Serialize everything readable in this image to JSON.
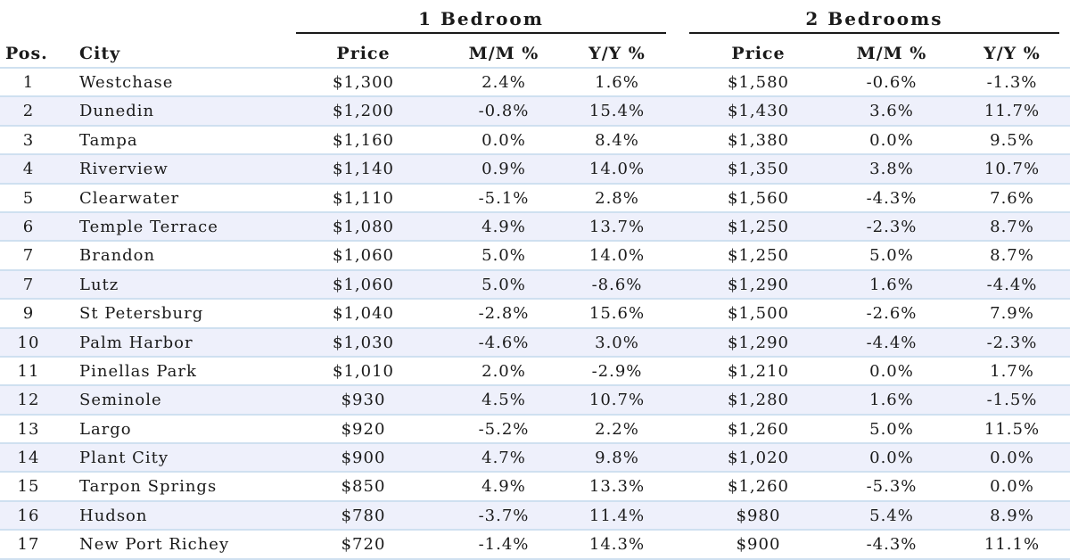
{
  "groups": {
    "one_bedroom": "1 Bedroom",
    "two_bedrooms": "2 Bedrooms"
  },
  "headers": {
    "pos": "Pos.",
    "city": "City",
    "price": "Price",
    "mm": "M/M %",
    "yy": "Y/Y %"
  },
  "rows": [
    {
      "pos": "1",
      "city": "Westchase",
      "p1": "$1,300",
      "mm1": "2.4%",
      "yy1": "1.6%",
      "p2": "$1,580",
      "mm2": "-0.6%",
      "yy2": "-1.3%"
    },
    {
      "pos": "2",
      "city": "Dunedin",
      "p1": "$1,200",
      "mm1": "-0.8%",
      "yy1": "15.4%",
      "p2": "$1,430",
      "mm2": "3.6%",
      "yy2": "11.7%"
    },
    {
      "pos": "3",
      "city": "Tampa",
      "p1": "$1,160",
      "mm1": "0.0%",
      "yy1": "8.4%",
      "p2": "$1,380",
      "mm2": "0.0%",
      "yy2": "9.5%"
    },
    {
      "pos": "4",
      "city": "Riverview",
      "p1": "$1,140",
      "mm1": "0.9%",
      "yy1": "14.0%",
      "p2": "$1,350",
      "mm2": "3.8%",
      "yy2": "10.7%"
    },
    {
      "pos": "5",
      "city": "Clearwater",
      "p1": "$1,110",
      "mm1": "-5.1%",
      "yy1": "2.8%",
      "p2": "$1,560",
      "mm2": "-4.3%",
      "yy2": "7.6%"
    },
    {
      "pos": "6",
      "city": "Temple Terrace",
      "p1": "$1,080",
      "mm1": "4.9%",
      "yy1": "13.7%",
      "p2": "$1,250",
      "mm2": "-2.3%",
      "yy2": "8.7%"
    },
    {
      "pos": "7",
      "city": "Brandon",
      "p1": "$1,060",
      "mm1": "5.0%",
      "yy1": "14.0%",
      "p2": "$1,250",
      "mm2": "5.0%",
      "yy2": "8.7%"
    },
    {
      "pos": "7",
      "city": "Lutz",
      "p1": "$1,060",
      "mm1": "5.0%",
      "yy1": "-8.6%",
      "p2": "$1,290",
      "mm2": "1.6%",
      "yy2": "-4.4%"
    },
    {
      "pos": "9",
      "city": "St Petersburg",
      "p1": "$1,040",
      "mm1": "-2.8%",
      "yy1": "15.6%",
      "p2": "$1,500",
      "mm2": "-2.6%",
      "yy2": "7.9%"
    },
    {
      "pos": "10",
      "city": "Palm Harbor",
      "p1": "$1,030",
      "mm1": "-4.6%",
      "yy1": "3.0%",
      "p2": "$1,290",
      "mm2": "-4.4%",
      "yy2": "-2.3%"
    },
    {
      "pos": "11",
      "city": "Pinellas Park",
      "p1": "$1,010",
      "mm1": "2.0%",
      "yy1": "-2.9%",
      "p2": "$1,210",
      "mm2": "0.0%",
      "yy2": "1.7%"
    },
    {
      "pos": "12",
      "city": "Seminole",
      "p1": "$930",
      "mm1": "4.5%",
      "yy1": "10.7%",
      "p2": "$1,280",
      "mm2": "1.6%",
      "yy2": "-1.5%"
    },
    {
      "pos": "13",
      "city": "Largo",
      "p1": "$920",
      "mm1": "-5.2%",
      "yy1": "2.2%",
      "p2": "$1,260",
      "mm2": "5.0%",
      "yy2": "11.5%"
    },
    {
      "pos": "14",
      "city": "Plant City",
      "p1": "$900",
      "mm1": "4.7%",
      "yy1": "9.8%",
      "p2": "$1,020",
      "mm2": "0.0%",
      "yy2": "0.0%"
    },
    {
      "pos": "15",
      "city": "Tarpon Springs",
      "p1": "$850",
      "mm1": "4.9%",
      "yy1": "13.3%",
      "p2": "$1,260",
      "mm2": "-5.3%",
      "yy2": "0.0%"
    },
    {
      "pos": "16",
      "city": "Hudson",
      "p1": "$780",
      "mm1": "-3.7%",
      "yy1": "11.4%",
      "p2": "$980",
      "mm2": "5.4%",
      "yy2": "8.9%"
    },
    {
      "pos": "17",
      "city": "New Port Richey",
      "p1": "$720",
      "mm1": "-1.4%",
      "yy1": "14.3%",
      "p2": "$900",
      "mm2": "-4.3%",
      "yy2": "11.1%"
    }
  ],
  "colors": {
    "row_alt": "#eef0fb",
    "rule": "#cfe0f0",
    "text": "#1a1a1a"
  }
}
